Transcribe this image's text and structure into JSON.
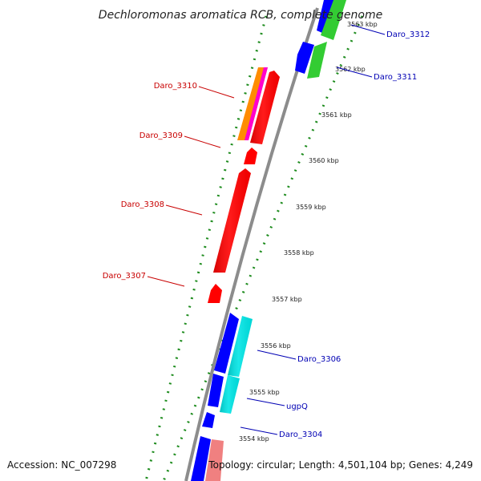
{
  "title": "Dechloromonas aromatica RCB, complete genome",
  "footer": {
    "accession": "Accession: NC_007298",
    "summary": "Topology: circular; Length: 4,501,104 bp; Genes: 4,249"
  },
  "colors": {
    "backbone": "#8c8c8c",
    "tick_dots": "#1e8c1e",
    "forward_label": "#0000b4",
    "reverse_label": "#c80000",
    "gene_blue": "#0000ff",
    "gene_green": "#33cc33",
    "gene_red": "#ff0000",
    "gene_cyan": "#00e5e5",
    "gene_pink": "#f08080",
    "gene_magenta": "#ff00cc",
    "gene_orange": "#ff8c00"
  },
  "ticks": [
    "3563 kbp",
    "3562 kbp",
    "3561 kbp",
    "3560 kbp",
    "3559 kbp",
    "3558 kbp",
    "3557 kbp",
    "3556 kbp",
    "3555 kbp",
    "3554 kbp"
  ],
  "genes_reverse": [
    "Daro_3310",
    "Daro_3309",
    "Daro_3308",
    "Daro_3307"
  ],
  "genes_forward": [
    "Daro_3312",
    "Daro_3311",
    "Daro_3306",
    "ugpQ",
    "Daro_3304"
  ]
}
